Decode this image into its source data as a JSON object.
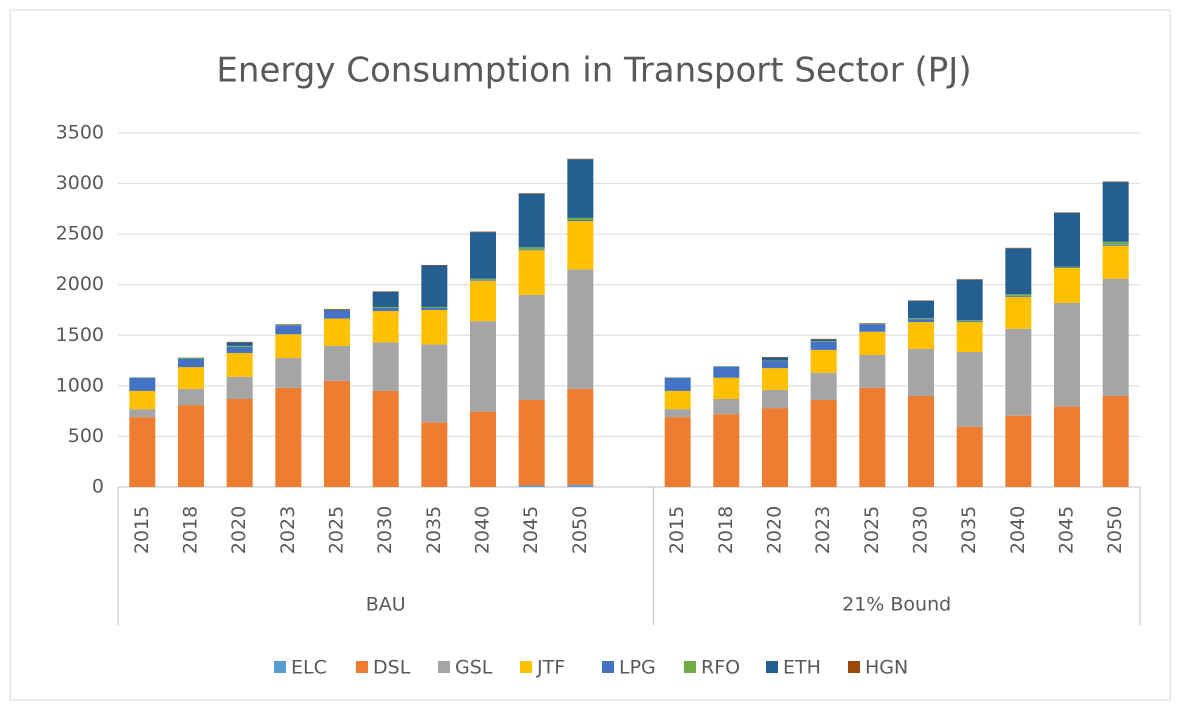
{
  "chart_data": {
    "type": "stacked_bar",
    "title": "Energy Consumption in Transport Sector (PJ)",
    "groups": [
      {
        "name": "BAU",
        "categories": [
          "2015",
          "2018",
          "2020",
          "2023",
          "2025",
          "2030",
          "2035",
          "2040",
          "2045",
          "2050"
        ]
      },
      {
        "name": "21% Bound",
        "categories": [
          "2015",
          "2018",
          "2020",
          "2023",
          "2025",
          "2030",
          "2035",
          "2040",
          "2045",
          "2050"
        ]
      }
    ],
    "series": [
      {
        "name": "ELC",
        "color": "#5b9bd5",
        "values": [
          0,
          0,
          0,
          0,
          0,
          0,
          0,
          0,
          15,
          20,
          0,
          0,
          0,
          0,
          0,
          0,
          0,
          0,
          0,
          0
        ]
      },
      {
        "name": "DSL",
        "color": "#ed7d31",
        "values": [
          690,
          810,
          870,
          980,
          1050,
          950,
          640,
          745,
          845,
          950,
          690,
          720,
          780,
          860,
          980,
          900,
          595,
          705,
          795,
          900
        ]
      },
      {
        "name": "GSL",
        "color": "#a5a5a5",
        "values": [
          80,
          160,
          220,
          295,
          345,
          480,
          770,
          895,
          1040,
          1180,
          80,
          150,
          180,
          270,
          325,
          465,
          740,
          860,
          1025,
          1160
        ]
      },
      {
        "name": "JTF",
        "color": "#ffc000",
        "values": [
          180,
          215,
          235,
          235,
          270,
          310,
          340,
          400,
          440,
          480,
          180,
          210,
          215,
          225,
          230,
          265,
          295,
          315,
          345,
          325
        ]
      },
      {
        "name": "LPG",
        "color": "#4472c4",
        "values": [
          130,
          85,
          60,
          90,
          85,
          30,
          20,
          10,
          10,
          10,
          130,
          110,
          70,
          80,
          75,
          30,
          10,
          10,
          5,
          10
        ]
      },
      {
        "name": "RFO",
        "color": "#70ad47",
        "values": [
          5,
          10,
          10,
          5,
          5,
          10,
          10,
          10,
          20,
          20,
          5,
          5,
          5,
          5,
          5,
          10,
          10,
          15,
          10,
          30
        ]
      },
      {
        "name": "ETH",
        "color": "#255e91",
        "values": [
          0,
          0,
          35,
          0,
          0,
          150,
          410,
          460,
          530,
          580,
          0,
          0,
          30,
          20,
          0,
          170,
          400,
          455,
          530,
          590
        ]
      },
      {
        "name": "HGN",
        "color": "#9e480e",
        "values": [
          0,
          0,
          5,
          5,
          5,
          5,
          5,
          5,
          5,
          5,
          0,
          0,
          5,
          5,
          5,
          5,
          5,
          5,
          5,
          5
        ]
      }
    ],
    "ylim": [
      0,
      3500
    ],
    "yticks": [
      0,
      500,
      1000,
      1500,
      2000,
      2500,
      3000,
      3500
    ],
    "grid": true,
    "legend": "bottom"
  }
}
